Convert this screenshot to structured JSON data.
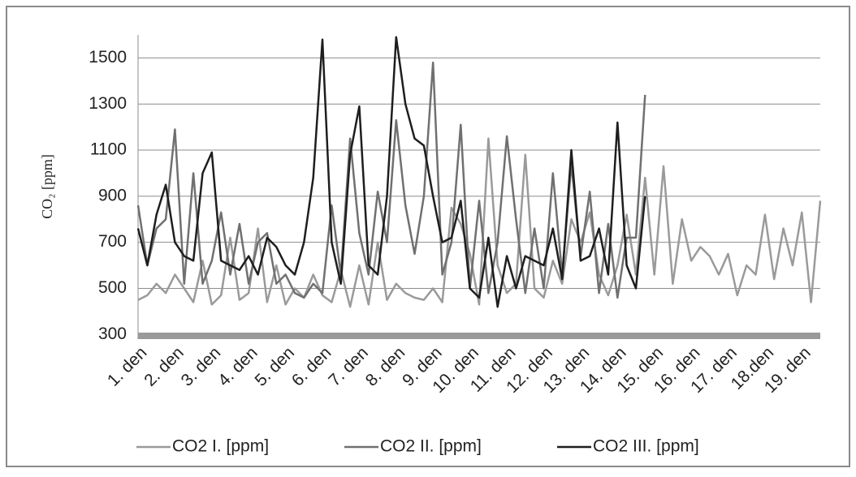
{
  "chart_data": {
    "type": "line",
    "ylabel": "CO₂ [ppm]",
    "categories": [
      "1. den",
      "2. den",
      "3. den",
      "4. den",
      "5. den",
      "6. den",
      "7. den",
      "8. den",
      "9. den",
      "10. den",
      "11. den",
      "12. den",
      "13. den",
      "14. den",
      "15. den",
      "16. den",
      "17. den",
      "18.den",
      "19. den"
    ],
    "x": [
      1,
      1.25,
      1.5,
      1.75,
      2,
      2.25,
      2.5,
      2.75,
      3,
      3.25,
      3.5,
      3.75,
      4,
      4.25,
      4.5,
      4.75,
      5,
      5.25,
      5.5,
      5.75,
      6,
      6.25,
      6.5,
      6.75,
      7,
      7.25,
      7.5,
      7.75,
      8,
      8.25,
      8.5,
      8.75,
      9,
      9.25,
      9.5,
      9.75,
      10,
      10.25,
      10.5,
      10.75,
      11,
      11.25,
      11.5,
      11.75,
      12,
      12.25,
      12.5,
      12.75,
      13,
      13.25,
      13.5,
      13.75,
      14,
      14.25,
      14.5,
      14.75,
      15,
      15.25,
      15.5,
      15.75,
      16,
      16.25,
      16.5,
      16.75,
      17,
      17.25,
      17.5,
      17.75,
      18,
      18.25,
      18.5,
      18.75,
      19,
      19.25,
      19.5
    ],
    "xlim": [
      1,
      19.5
    ],
    "ylim": [
      280,
      1600
    ],
    "yticks": [
      300,
      500,
      700,
      900,
      1100,
      1300,
      1500
    ],
    "grid": true,
    "legend": "bottom",
    "series": [
      {
        "name": "CO2 I. [ppm]",
        "color": "#9a9a9a",
        "values": [
          450,
          470,
          520,
          480,
          560,
          500,
          440,
          620,
          430,
          470,
          720,
          450,
          480,
          760,
          440,
          600,
          430,
          500,
          460,
          560,
          470,
          440,
          580,
          420,
          600,
          430,
          700,
          450,
          520,
          480,
          460,
          450,
          500,
          440,
          850,
          780,
          650,
          430,
          1150,
          600,
          480,
          520,
          1080,
          500,
          460,
          620,
          520,
          800,
          700,
          830,
          560,
          470,
          600,
          820,
          560,
          980,
          560,
          1030,
          520,
          800,
          620,
          680,
          640,
          560,
          650,
          470,
          600,
          560,
          820,
          540,
          760,
          600,
          830,
          440,
          880
        ]
      },
      {
        "name": "CO2 II. [ppm]",
        "color": "#707070",
        "values": [
          860,
          600,
          760,
          800,
          1190,
          520,
          1000,
          520,
          620,
          830,
          560,
          780,
          520,
          700,
          740,
          520,
          560,
          480,
          460,
          520,
          480,
          860,
          560,
          1150,
          740,
          560,
          920,
          700,
          1230,
          860,
          650,
          900,
          1480,
          560,
          700,
          1210,
          500,
          880,
          480,
          700,
          1160,
          800,
          480,
          760,
          500,
          1000,
          560,
          1040,
          640,
          920,
          480,
          780,
          460,
          720,
          720,
          1340,
          null,
          null,
          null,
          null,
          null,
          null,
          null,
          null,
          null,
          null,
          null,
          null,
          null,
          null,
          null,
          null,
          null,
          null,
          null
        ]
      },
      {
        "name": "CO2 III. [ppm]",
        "color": "#1e1e1e",
        "values": [
          760,
          600,
          820,
          950,
          700,
          640,
          620,
          1000,
          1090,
          620,
          600,
          580,
          640,
          560,
          720,
          680,
          600,
          560,
          700,
          980,
          1580,
          700,
          520,
          1080,
          1290,
          600,
          560,
          900,
          1590,
          1300,
          1150,
          1120,
          900,
          700,
          720,
          880,
          500,
          460,
          720,
          420,
          640,
          500,
          640,
          620,
          600,
          760,
          540,
          1100,
          620,
          640,
          760,
          560,
          1220,
          600,
          500,
          900,
          null,
          null,
          null,
          null,
          null,
          null,
          null,
          null,
          null,
          null,
          null,
          null,
          null,
          null,
          null,
          null,
          null,
          null,
          null
        ]
      }
    ]
  }
}
